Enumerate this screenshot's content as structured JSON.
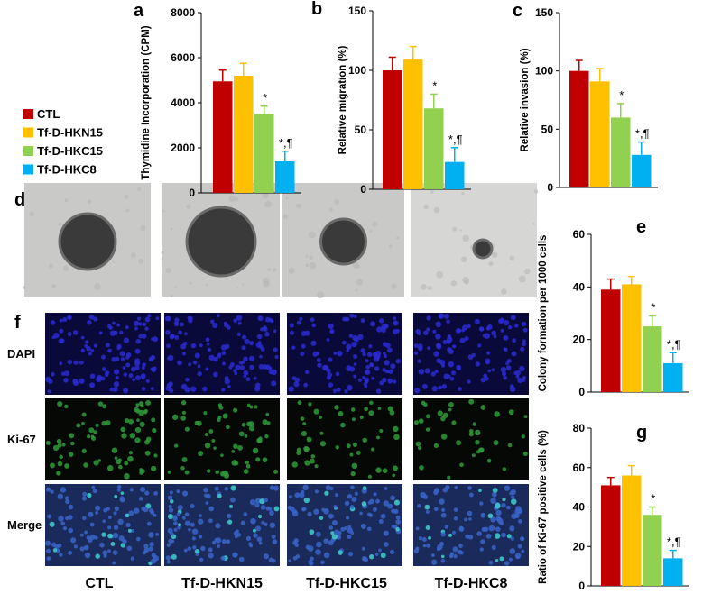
{
  "chart_data": [
    {
      "type": "bar",
      "panel": "a",
      "ylabel": "Thymidine Incorporation (CPM)",
      "ylim": [
        0,
        8000
      ],
      "yticks": [
        0,
        2000,
        4000,
        6000,
        8000
      ],
      "values": [
        4950,
        5200,
        3500,
        1400
      ],
      "errors": [
        500,
        550,
        350,
        450
      ],
      "annotations": [
        {
          "index": 2,
          "text": "*"
        },
        {
          "index": 3,
          "text": "*,¶"
        }
      ]
    },
    {
      "type": "bar",
      "panel": "b",
      "ylabel": "Relative migration (%)",
      "ylim": [
        0,
        150
      ],
      "yticks": [
        0,
        50,
        100,
        150
      ],
      "values": [
        100,
        109,
        68,
        23
      ],
      "errors": [
        11,
        11,
        12,
        12
      ],
      "annotations": [
        {
          "index": 2,
          "text": "*"
        },
        {
          "index": 3,
          "text": "*,¶"
        }
      ]
    },
    {
      "type": "bar",
      "panel": "c",
      "ylabel": "Relative invasion (%)",
      "ylim": [
        0,
        150
      ],
      "yticks": [
        0,
        50,
        100,
        150
      ],
      "values": [
        100,
        91,
        60,
        28
      ],
      "errors": [
        9,
        11,
        12,
        11
      ],
      "annotations": [
        {
          "index": 2,
          "text": "*"
        },
        {
          "index": 3,
          "text": "*,¶"
        }
      ]
    },
    {
      "type": "bar",
      "panel": "e",
      "ylabel": "Colony formation per 1000 cells",
      "ylim": [
        0,
        60
      ],
      "yticks": [
        0,
        20,
        40,
        60
      ],
      "values": [
        39,
        41,
        25,
        11
      ],
      "errors": [
        4,
        3,
        4,
        4
      ],
      "annotations": [
        {
          "index": 2,
          "text": "*"
        },
        {
          "index": 3,
          "text": "*,¶"
        }
      ]
    },
    {
      "type": "bar",
      "panel": "g",
      "ylabel": "Ratio of Ki-67 positive cells (%)",
      "ylim": [
        0,
        80
      ],
      "yticks": [
        0,
        20,
        40,
        60,
        80
      ],
      "values": [
        51,
        56,
        36,
        14
      ],
      "errors": [
        4,
        5,
        4,
        4
      ],
      "annotations": [
        {
          "index": 2,
          "text": "*"
        },
        {
          "index": 3,
          "text": "*,¶"
        }
      ]
    }
  ],
  "legend": [
    {
      "name": "CTL",
      "color": "#c00000"
    },
    {
      "name": "Tf-D-HKN15",
      "color": "#ffc000"
    },
    {
      "name": "Tf-D-HKC15",
      "color": "#92d050"
    },
    {
      "name": "Tf-D-HKC8",
      "color": "#00b0f0"
    }
  ],
  "images": {
    "panel_d": "d",
    "panel_f": "f",
    "rows": [
      "DAPI",
      "Ki-67",
      "Merge"
    ],
    "columns": [
      "CTL",
      "Tf-D-HKN15",
      "Tf-D-HKC15",
      "Tf-D-HKC8"
    ]
  }
}
